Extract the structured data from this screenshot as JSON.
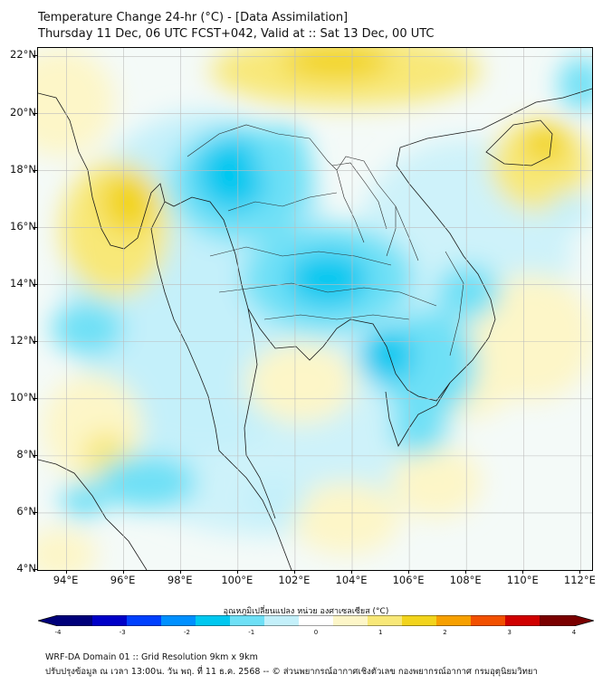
{
  "title": {
    "line1": "Temperature Change 24-hr (°C) - [Data Assimilation]",
    "line2": "Thursday 11 Dec, 06 UTC FCST+042, Valid at :: Sat 13 Dec, 00 UTC"
  },
  "map": {
    "lat_labels": [
      "22°N",
      "20°N",
      "18°N",
      "16°N",
      "14°N",
      "12°N",
      "10°N",
      "8°N",
      "6°N",
      "4°N"
    ],
    "lon_labels": [
      "94°E",
      "96°E",
      "98°E",
      "100°E",
      "102°E",
      "104°E",
      "106°E",
      "108°E",
      "110°E",
      "112°E"
    ],
    "lat_range_deg_N": [
      4,
      22.3
    ],
    "lon_range_deg_E": [
      93,
      112.4
    ],
    "gridlines": true,
    "field": "24-hr temperature change",
    "colors": {
      "strong_cool": "#00c8f0",
      "cool": "#6ee0f6",
      "slight_cool": "#c4f0fa",
      "neutral": "#f4faf8",
      "slight_warm": "#fdf6c8",
      "warm": "#f8e878",
      "strong_warm": "#f2d41c"
    }
  },
  "colorbar": {
    "title": "อุณหภูมิเปลี่ยนแปลง หน่วย องศาเซลเซียส (°C)",
    "ticks": [
      "-4",
      "-3",
      "-2",
      "-1",
      "0",
      "1",
      "2",
      "3",
      "4"
    ],
    "range": [
      -4,
      4
    ],
    "colors": [
      "#00007a",
      "#0000c8",
      "#0040ff",
      "#0090ff",
      "#00c8f0",
      "#6ee0f6",
      "#c4f0fa",
      "#ffffff",
      "#fdf6c8",
      "#f8e878",
      "#f2d41c",
      "#f7a000",
      "#f25000",
      "#d00000",
      "#7a0000"
    ]
  },
  "footer": {
    "line1": "WRF-DA Domain 01 :: Grid Resolution 9km x 9km",
    "line2": "ปรับปรุงข้อมูล ณ เวลา 13:00น. วัน พฤ. ที่ 11 ธ.ค. 2568 -- © ส่วนพยากรณ์อากาศเชิงตัวเลข กองพยากรณ์อากาศ กรมอุตุนิยมวิทยา"
  }
}
